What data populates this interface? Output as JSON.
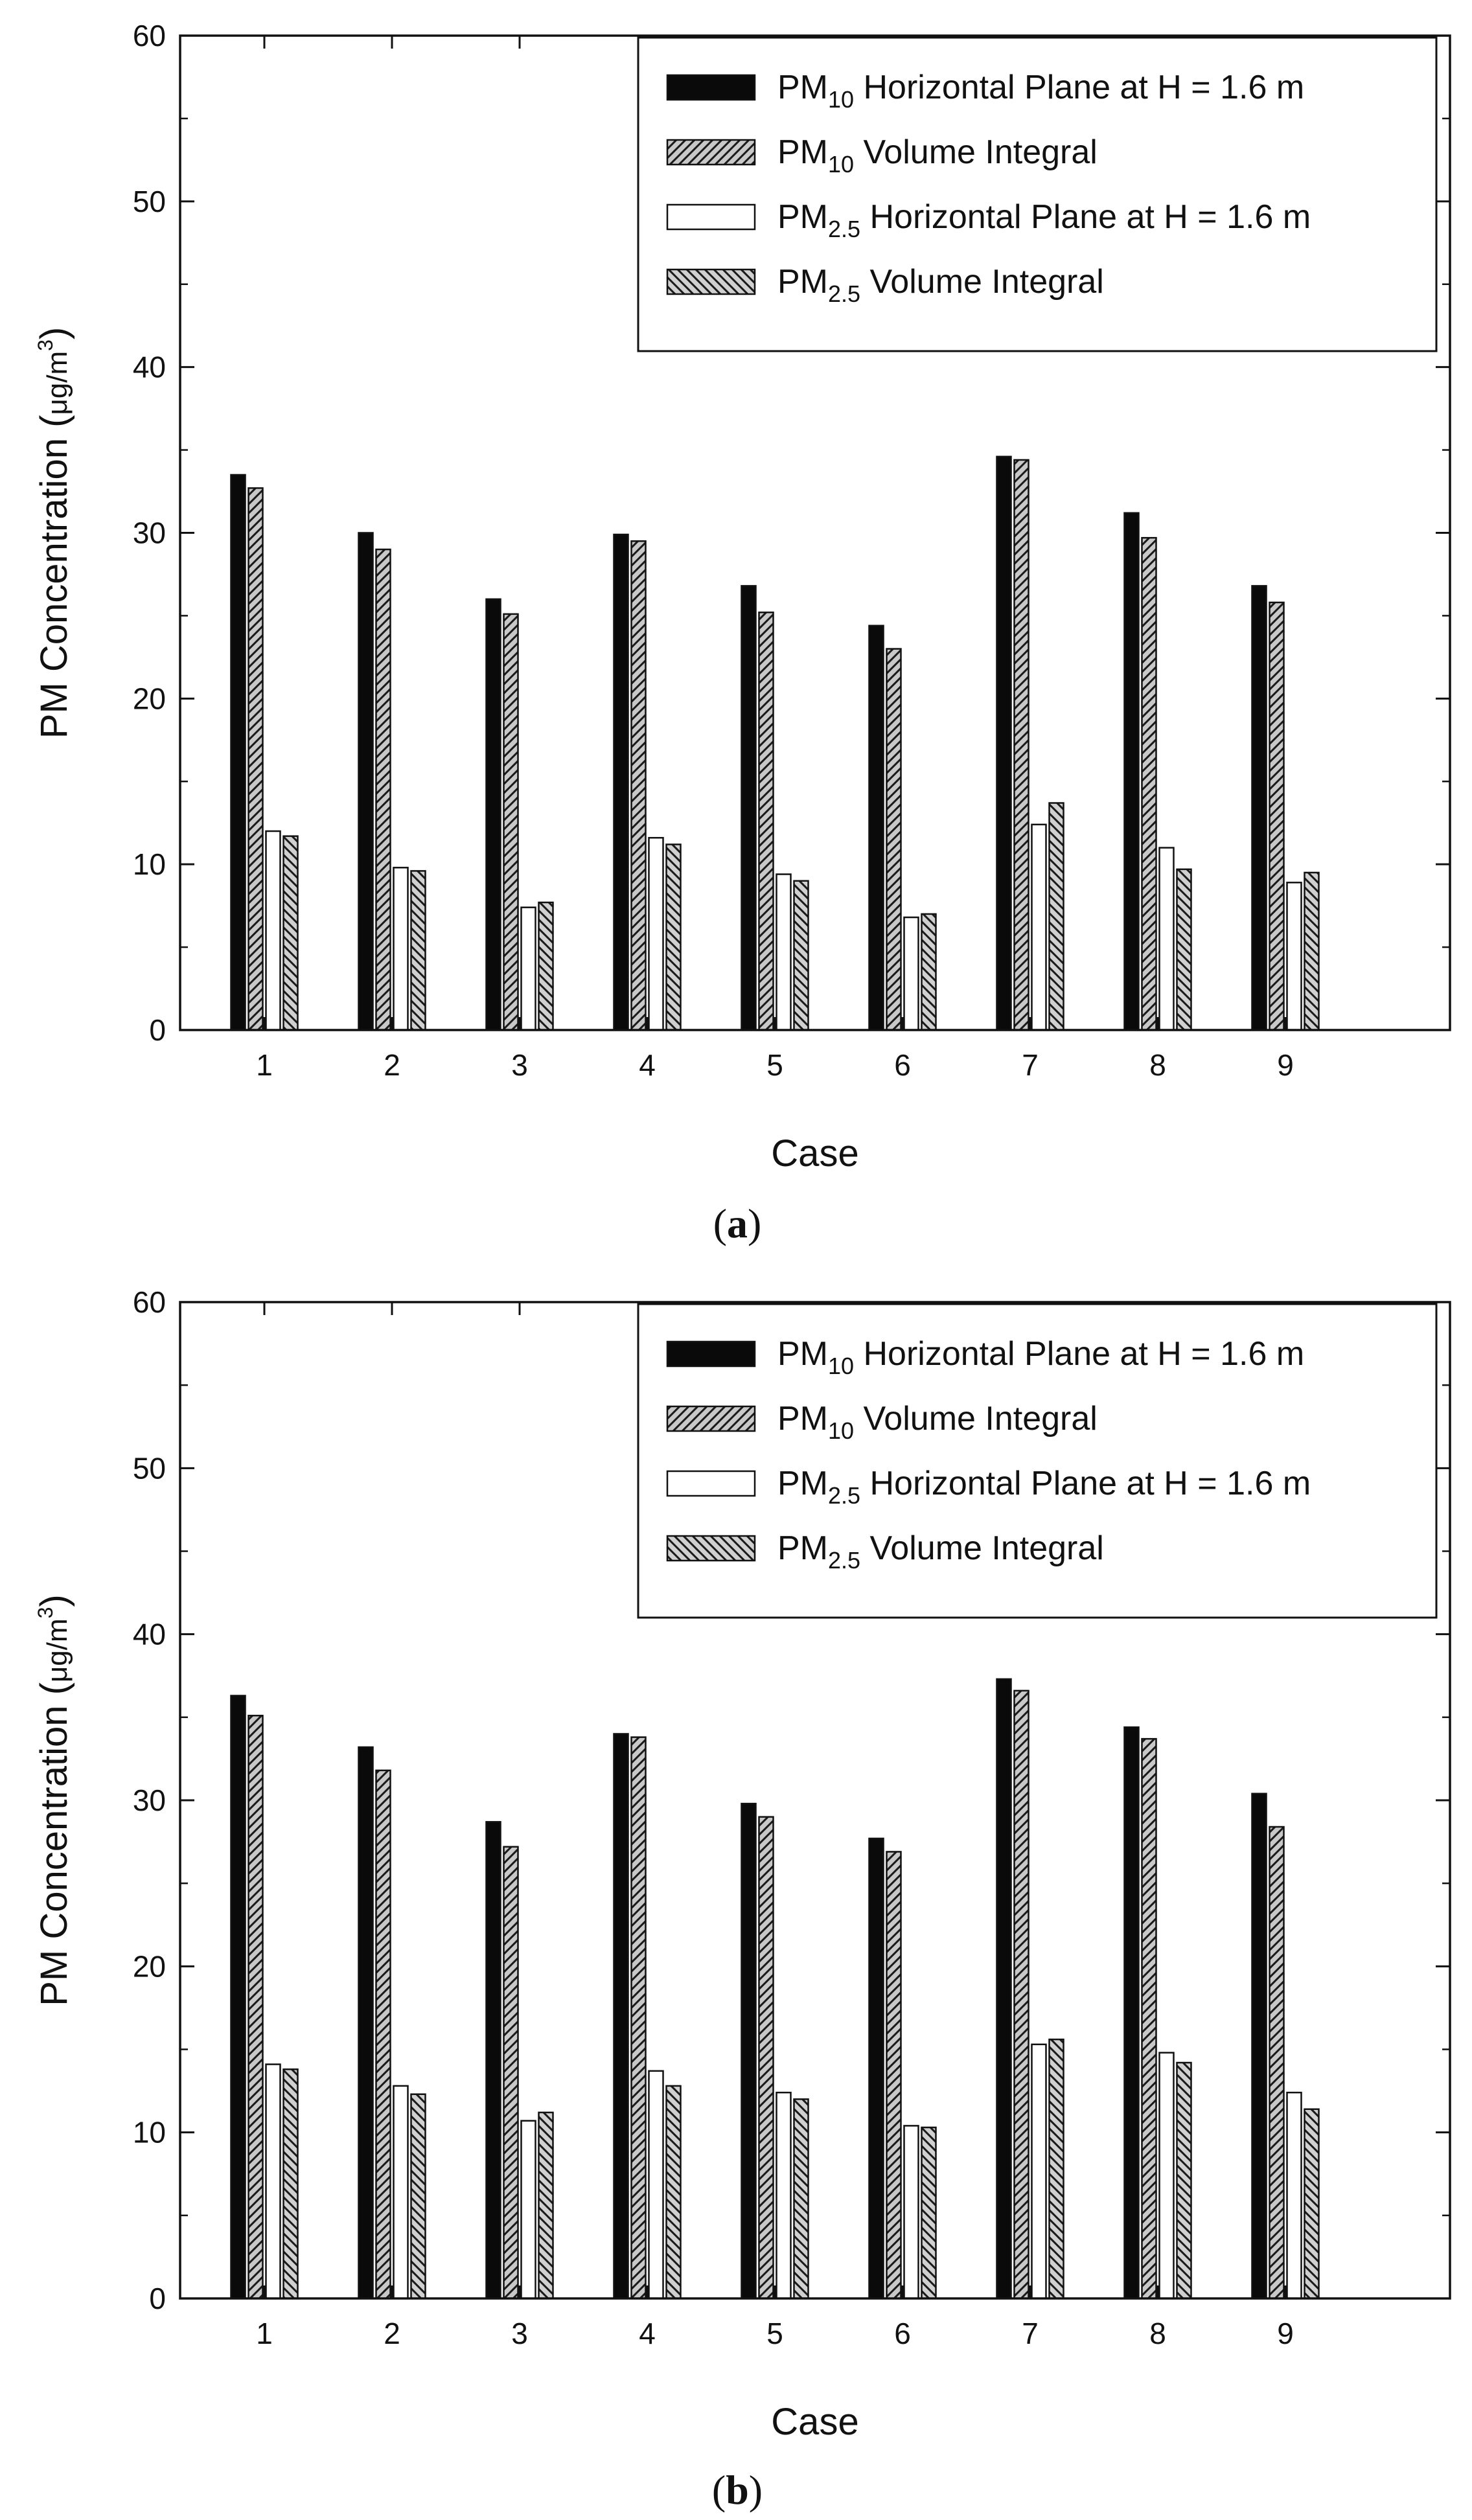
{
  "chart_data": [
    {
      "panel": "a",
      "panel_label_open": "(",
      "panel_label_letter": "a",
      "panel_label_close": ")",
      "type": "bar",
      "xlabel": "Case",
      "ylabel": "PM Concentration (μg/m³)",
      "ylabel_main": "PM Concentration (",
      "ylabel_unit": "μg/m",
      "ylabel_sup": "3",
      "ylabel_close": ")",
      "ylim": [
        0,
        60
      ],
      "yticks": [
        "0",
        "10",
        "20",
        "30",
        "40",
        "50",
        "60"
      ],
      "categories": [
        "1",
        "2",
        "3",
        "4",
        "5",
        "6",
        "7",
        "8",
        "9"
      ],
      "legend_position": "top-right",
      "series": [
        {
          "name": "PM10 Horizontal Plane at H = 1.6 m",
          "pm": "PM",
          "sub": "10",
          "rest": " Horizontal Plane at H = 1.6 m",
          "style": "solid-black",
          "values": [
            33.5,
            30.0,
            26.0,
            29.9,
            26.8,
            24.4,
            34.6,
            31.2,
            26.8
          ]
        },
        {
          "name": "PM10 Volume Integral",
          "pm": "PM",
          "sub": "10",
          "rest": " Volume Integral",
          "style": "hatch-forward",
          "values": [
            32.7,
            29.0,
            25.1,
            29.5,
            25.2,
            23.0,
            34.4,
            29.7,
            25.8
          ]
        },
        {
          "name": "PM2.5 Horizontal Plane at H = 1.6 m",
          "pm": "PM",
          "sub": "2.5",
          "rest": " Horizontal Plane at H = 1.6 m",
          "style": "white",
          "values": [
            12.0,
            9.8,
            7.4,
            11.6,
            9.4,
            6.8,
            12.4,
            11.0,
            8.9
          ]
        },
        {
          "name": "PM2.5 Volume Integral",
          "pm": "PM",
          "sub": "2.5",
          "rest": " Volume Integral",
          "style": "hatch-back",
          "values": [
            11.7,
            9.6,
            7.7,
            11.2,
            9.0,
            7.0,
            13.7,
            9.7,
            9.5
          ]
        }
      ]
    },
    {
      "panel": "b",
      "panel_label_open": "(",
      "panel_label_letter": "b",
      "panel_label_close": ")",
      "type": "bar",
      "xlabel": "Case",
      "ylabel": "PM Concentration (μg/m³)",
      "ylabel_main": "PM Concentration (",
      "ylabel_unit": "μg/m",
      "ylabel_sup": "3",
      "ylabel_close": ")",
      "ylim": [
        0,
        60
      ],
      "yticks": [
        "0",
        "10",
        "20",
        "30",
        "40",
        "50",
        "60"
      ],
      "categories": [
        "1",
        "2",
        "3",
        "4",
        "5",
        "6",
        "7",
        "8",
        "9"
      ],
      "legend_position": "top-right",
      "series": [
        {
          "name": "PM10 Horizontal Plane at H = 1.6 m",
          "pm": "PM",
          "sub": "10",
          "rest": " Horizontal Plane at H = 1.6 m",
          "style": "solid-black",
          "values": [
            36.3,
            33.2,
            28.7,
            34.0,
            29.8,
            27.7,
            37.3,
            34.4,
            30.4
          ]
        },
        {
          "name": "PM10 Volume Integral",
          "pm": "PM",
          "sub": "10",
          "rest": " Volume Integral",
          "style": "hatch-forward",
          "values": [
            35.1,
            31.8,
            27.2,
            33.8,
            29.0,
            26.9,
            36.6,
            33.7,
            28.4
          ]
        },
        {
          "name": "PM2.5 Horizontal Plane at H = 1.6 m",
          "pm": "PM",
          "sub": "2.5",
          "rest": " Horizontal Plane at H = 1.6 m",
          "style": "white",
          "values": [
            14.1,
            12.8,
            10.7,
            13.7,
            12.4,
            10.4,
            15.3,
            14.8,
            12.4
          ]
        },
        {
          "name": "PM2.5 Volume Integral",
          "pm": "PM",
          "sub": "2.5",
          "rest": " Volume Integral",
          "style": "hatch-back",
          "values": [
            13.8,
            12.3,
            11.2,
            12.8,
            12.0,
            10.3,
            15.6,
            14.2,
            11.4
          ]
        }
      ]
    }
  ],
  "colors": {
    "solid": "#0a0a0a",
    "hatch_fill": "#c8c8c8",
    "hatch_line": "#1a1a1a",
    "white": "#ffffff",
    "axis": "#111111"
  }
}
